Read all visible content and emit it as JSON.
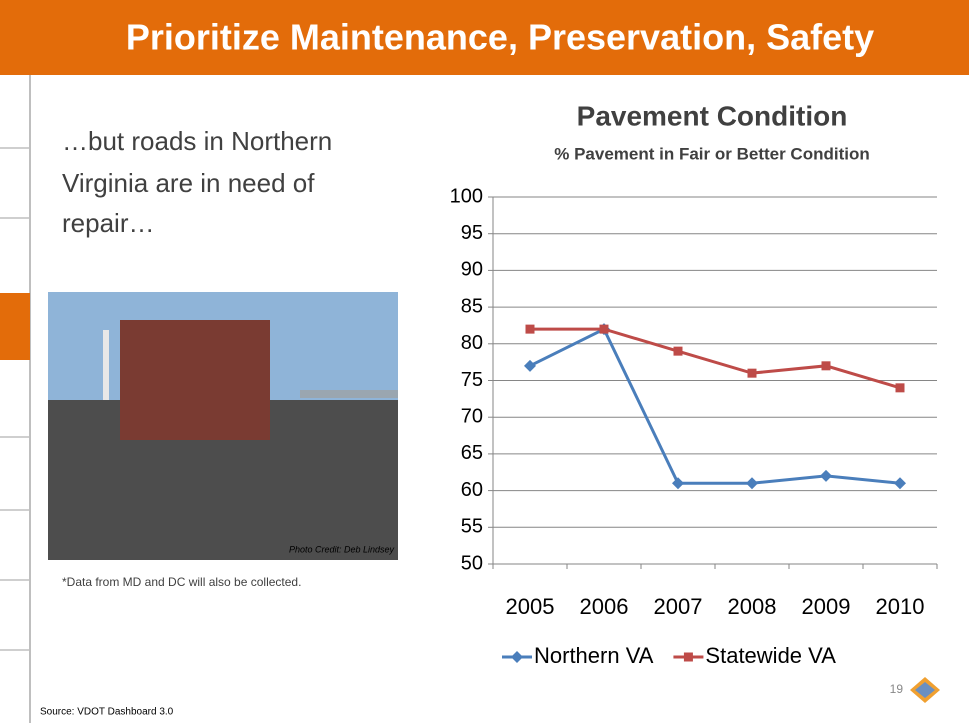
{
  "slide": {
    "title": "Prioritize Maintenance, Preservation, Safety",
    "body_lines": [
      "…but roads in Northern",
      "Virginia are in need of",
      "repair…"
    ],
    "photo_credit": "Photo Credit: Deb Lindsey",
    "note": "*Data from MD and DC will also be collected.",
    "source": "Source: VDOT Dashboard 3.0",
    "page_number": "19"
  },
  "chart_data": {
    "type": "line",
    "title": "Pavement Condition",
    "subtitle": "% Pavement in Fair or Better Condition",
    "categories": [
      "2005",
      "2006",
      "2007",
      "2008",
      "2009",
      "2010"
    ],
    "series": [
      {
        "name": "Northern VA",
        "color": "#4a7ebb",
        "marker": "diamond",
        "values": [
          77,
          82,
          61,
          61,
          62,
          61
        ]
      },
      {
        "name": "Statewide VA",
        "color": "#be4b48",
        "marker": "square",
        "values": [
          82,
          82,
          79,
          76,
          77,
          74
        ]
      }
    ],
    "ylim": [
      50,
      100
    ],
    "yticks": [
      50,
      55,
      60,
      65,
      70,
      75,
      80,
      85,
      90,
      95,
      100
    ],
    "grid": true,
    "legend": "bottom"
  }
}
